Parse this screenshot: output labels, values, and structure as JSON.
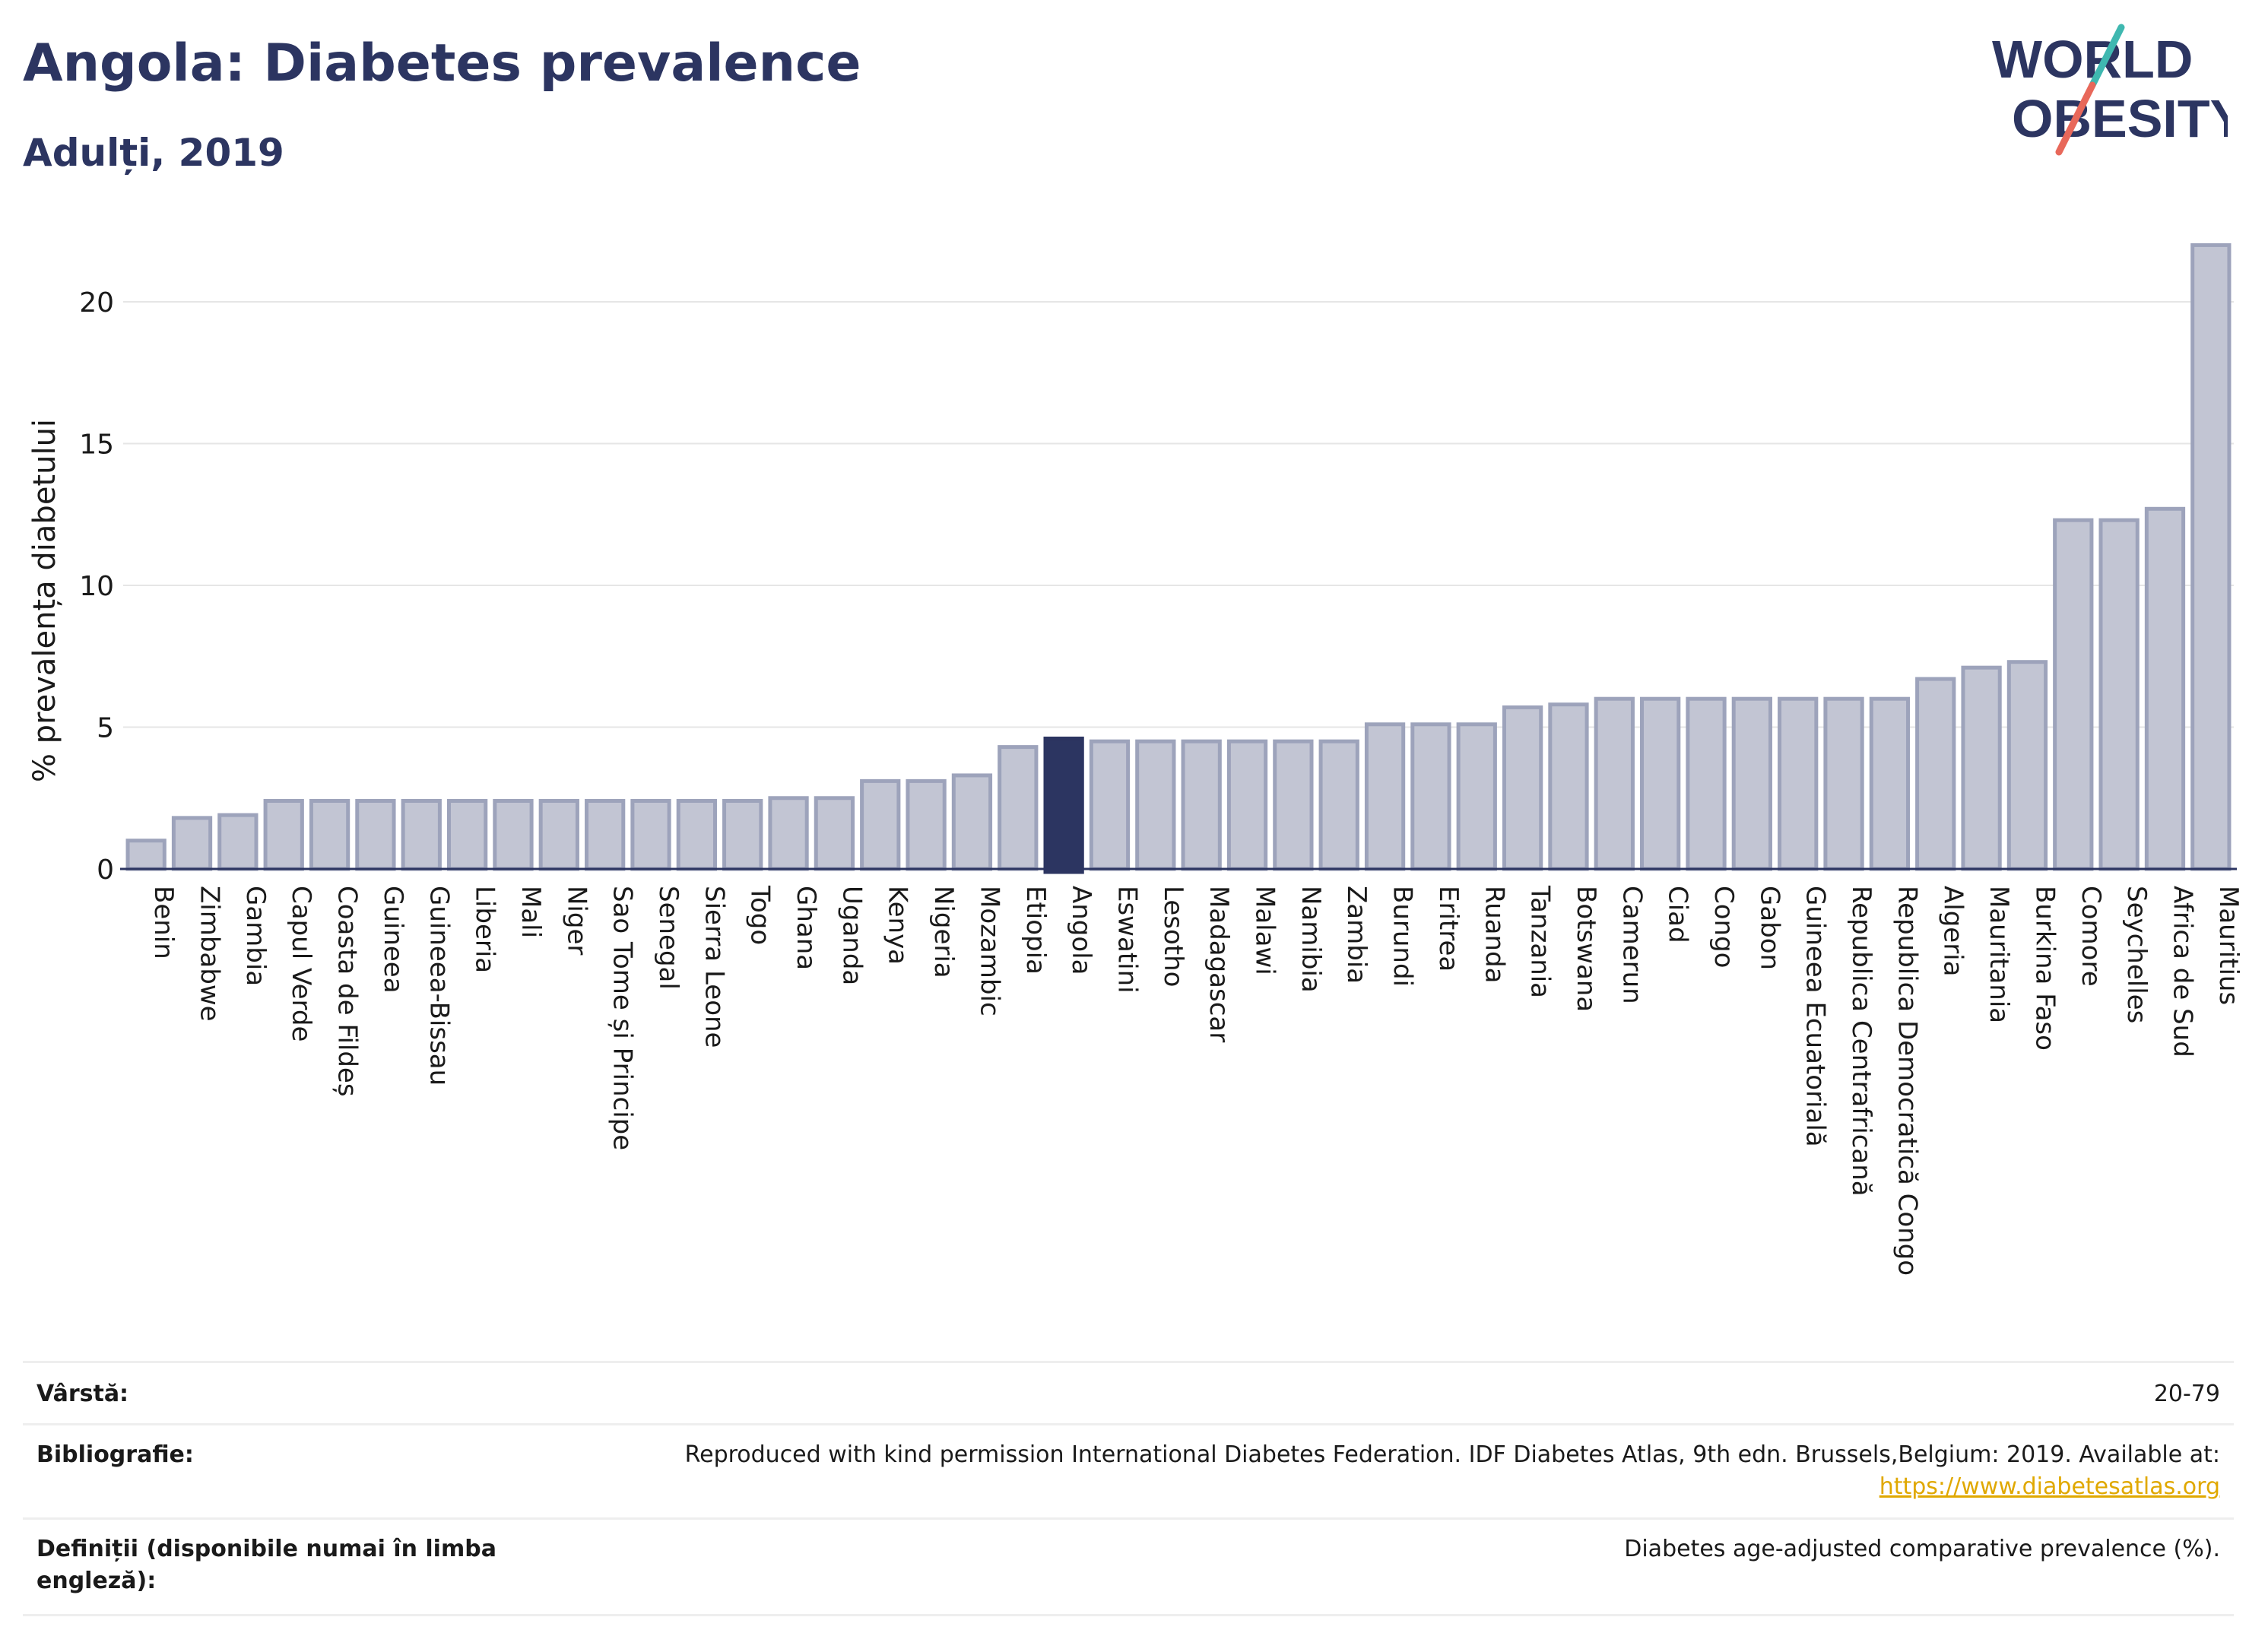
{
  "header": {
    "title": "Angola: Diabetes prevalence",
    "subtitle": "Adulți, 2019"
  },
  "logo": {
    "line1": "WORLD",
    "line2": "OBESITY",
    "colors": {
      "text": "#2c3561",
      "slash_teal": "#3fb8b0",
      "slash_red": "#e8685a"
    }
  },
  "chart_data": {
    "type": "bar",
    "ylabel": "% prevalența diabetului",
    "xlabel": "",
    "ylim": [
      0,
      22.5
    ],
    "yticks": [
      0,
      5,
      10,
      15,
      20
    ],
    "grid": true,
    "highlight": "Angola",
    "colors": {
      "bar": "#c2c5d3",
      "bar_border": "#9da3bb",
      "highlight": "#2c3561"
    },
    "categories": [
      "Benin",
      "Zimbabwe",
      "Gambia",
      "Capul Verde",
      "Coasta de Fildeș",
      "Guineea",
      "Guineea-Bissau",
      "Liberia",
      "Mali",
      "Niger",
      "Sao Tome și Principe",
      "Senegal",
      "Sierra Leone",
      "Togo",
      "Ghana",
      "Uganda",
      "Kenya",
      "Nigeria",
      "Mozambic",
      "Etiopia",
      "Angola",
      "Eswatini",
      "Lesotho",
      "Madagascar",
      "Malawi",
      "Namibia",
      "Zambia",
      "Burundi",
      "Eritrea",
      "Ruanda",
      "Tanzania",
      "Botswana",
      "Camerun",
      "Ciad",
      "Congo",
      "Gabon",
      "Guineea Ecuatorială",
      "Republica Centrafricană",
      "Republica Democratică Congo",
      "Algeria",
      "Mauritania",
      "Burkina Faso",
      "Comore",
      "Seychelles",
      "Africa de Sud",
      "Mauritius"
    ],
    "values": [
      1.0,
      1.8,
      1.9,
      2.4,
      2.4,
      2.4,
      2.4,
      2.4,
      2.4,
      2.4,
      2.4,
      2.4,
      2.4,
      2.4,
      2.5,
      2.5,
      3.1,
      3.1,
      3.3,
      4.3,
      4.6,
      4.5,
      4.5,
      4.5,
      4.5,
      4.5,
      4.5,
      5.1,
      5.1,
      5.1,
      5.7,
      5.8,
      6.0,
      6.0,
      6.0,
      6.0,
      6.0,
      6.0,
      6.0,
      6.7,
      7.1,
      7.3,
      12.3,
      12.3,
      12.7,
      22.0
    ]
  },
  "meta": {
    "age_label": "Vârstă:",
    "age_value": "20-79",
    "bib_label": "Bibliografie:",
    "bib_value": "Reproduced with kind permission International Diabetes Federation. IDF Diabetes Atlas, 9th edn. Brussels,Belgium: 2019. Available at:",
    "bib_link": "https://www.diabetesatlas.org",
    "def_label": "Definiții (disponibile numai în limba engleză):",
    "def_value": "Diabetes age-adjusted comparative prevalence (%)."
  }
}
